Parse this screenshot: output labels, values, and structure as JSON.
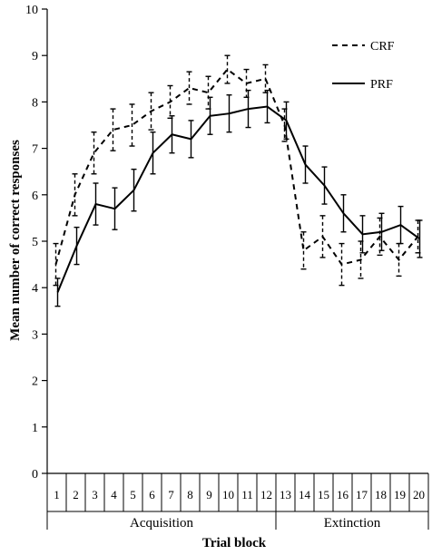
{
  "chart_data": {
    "type": "line",
    "title": "",
    "xlabel": "Trial block",
    "ylabel": "Mean number of correct responses",
    "ylim": [
      0,
      10
    ],
    "yticks": [
      0,
      1,
      2,
      3,
      4,
      5,
      6,
      7,
      8,
      9,
      10
    ],
    "x": [
      1,
      2,
      3,
      4,
      5,
      6,
      7,
      8,
      9,
      10,
      11,
      12,
      13,
      14,
      15,
      16,
      17,
      18,
      19,
      20
    ],
    "groups": [
      {
        "label": "Acquisition",
        "from": 1,
        "to": 12
      },
      {
        "label": "Extinction",
        "from": 13,
        "to": 20
      }
    ],
    "legend": {
      "position": "top-right"
    },
    "grid": false,
    "series": [
      {
        "name": "CRF",
        "style": "dashed",
        "color": "#000000",
        "values": [
          4.5,
          6.0,
          6.9,
          7.4,
          7.5,
          7.8,
          8.0,
          8.3,
          8.2,
          8.7,
          8.4,
          8.5,
          7.5,
          4.8,
          5.1,
          4.5,
          4.6,
          5.1,
          4.6,
          5.1
        ],
        "errors": [
          0.45,
          0.45,
          0.45,
          0.45,
          0.45,
          0.4,
          0.35,
          0.35,
          0.35,
          0.3,
          0.3,
          0.3,
          0.35,
          0.4,
          0.45,
          0.45,
          0.4,
          0.4,
          0.35,
          0.35
        ]
      },
      {
        "name": "PRF",
        "style": "solid",
        "color": "#000000",
        "values": [
          3.9,
          4.9,
          5.8,
          5.7,
          6.1,
          6.9,
          7.3,
          7.2,
          7.7,
          7.75,
          7.85,
          7.9,
          7.6,
          6.65,
          6.2,
          5.6,
          5.15,
          5.2,
          5.35,
          5.05
        ],
        "errors": [
          0.3,
          0.4,
          0.45,
          0.45,
          0.45,
          0.45,
          0.4,
          0.4,
          0.4,
          0.4,
          0.4,
          0.35,
          0.4,
          0.4,
          0.4,
          0.4,
          0.4,
          0.4,
          0.4,
          0.4
        ]
      }
    ]
  }
}
